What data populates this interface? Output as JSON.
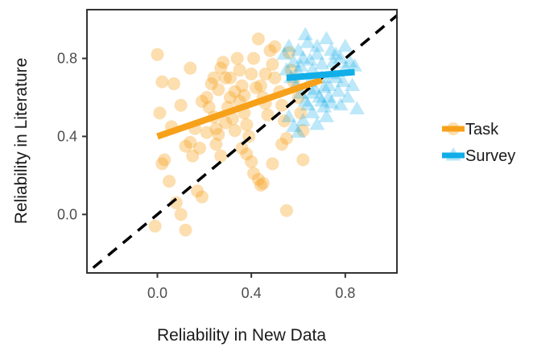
{
  "chart_data": {
    "type": "scatter",
    "xlabel": "Reliability in New Data",
    "ylabel": "Reliability in Literature",
    "xlim": [
      -0.3,
      1.02
    ],
    "ylim": [
      -0.3,
      1.05
    ],
    "xticks": [
      {
        "value": 0.0,
        "label": "0.0"
      },
      {
        "value": 0.4,
        "label": "0.4"
      },
      {
        "value": 0.8,
        "label": "0.8"
      }
    ],
    "yticks": [
      {
        "value": 0.0,
        "label": "0.0"
      },
      {
        "value": 0.4,
        "label": "0.4"
      },
      {
        "value": 0.8,
        "label": "0.8"
      }
    ],
    "legend_position": "right",
    "reference_line": {
      "type": "identity",
      "style": "dashed",
      "color": "#000000"
    },
    "series": [
      {
        "name": "Task",
        "marker": "circle",
        "color": "#f7a11a",
        "fit_line": [
          [
            0.0,
            0.4
          ],
          [
            0.7,
            0.69
          ]
        ],
        "points": [
          [
            0.0,
            0.82
          ],
          [
            0.02,
            0.68
          ],
          [
            0.07,
            0.67
          ],
          [
            0.01,
            0.52
          ],
          [
            0.06,
            0.45
          ],
          [
            0.03,
            0.28
          ],
          [
            0.05,
            0.17
          ],
          [
            0.02,
            0.26
          ],
          [
            -0.01,
            -0.06
          ],
          [
            0.1,
            0.0
          ],
          [
            0.12,
            -0.08
          ],
          [
            0.08,
            0.06
          ],
          [
            0.15,
            0.3
          ],
          [
            0.17,
            0.12
          ],
          [
            0.19,
            0.09
          ],
          [
            0.12,
            0.35
          ],
          [
            0.14,
            0.37
          ],
          [
            0.16,
            0.44
          ],
          [
            0.1,
            0.56
          ],
          [
            0.14,
            0.75
          ],
          [
            0.19,
            0.58
          ],
          [
            0.21,
            0.6
          ],
          [
            0.22,
            0.55
          ],
          [
            0.24,
            0.5
          ],
          [
            0.25,
            0.44
          ],
          [
            0.26,
            0.41
          ],
          [
            0.25,
            0.36
          ],
          [
            0.27,
            0.3
          ],
          [
            0.23,
            0.67
          ],
          [
            0.24,
            0.7
          ],
          [
            0.26,
            0.64
          ],
          [
            0.27,
            0.75
          ],
          [
            0.28,
            0.78
          ],
          [
            0.29,
            0.7
          ],
          [
            0.3,
            0.55
          ],
          [
            0.31,
            0.6
          ],
          [
            0.32,
            0.49
          ],
          [
            0.33,
            0.43
          ],
          [
            0.34,
            0.8
          ],
          [
            0.35,
            0.74
          ],
          [
            0.36,
            0.66
          ],
          [
            0.37,
            0.61
          ],
          [
            0.37,
            0.52
          ],
          [
            0.38,
            0.46
          ],
          [
            0.39,
            0.4
          ],
          [
            0.36,
            0.34
          ],
          [
            0.38,
            0.31
          ],
          [
            0.4,
            0.27
          ],
          [
            0.41,
            0.21
          ],
          [
            0.43,
            0.18
          ],
          [
            0.44,
            0.15
          ],
          [
            0.45,
            0.16
          ],
          [
            0.4,
            0.72
          ],
          [
            0.41,
            0.8
          ],
          [
            0.43,
            0.9
          ],
          [
            0.44,
            0.66
          ],
          [
            0.45,
            0.6
          ],
          [
            0.46,
            0.57
          ],
          [
            0.47,
            0.51
          ],
          [
            0.48,
            0.84
          ],
          [
            0.49,
            0.77
          ],
          [
            0.5,
            0.7
          ],
          [
            0.5,
            0.86
          ],
          [
            0.52,
            0.63
          ],
          [
            0.53,
            0.56
          ],
          [
            0.54,
            0.48
          ],
          [
            0.55,
            0.39
          ],
          [
            0.56,
            0.83
          ],
          [
            0.57,
            0.74
          ],
          [
            0.58,
            0.68
          ],
          [
            0.6,
            0.6
          ],
          [
            0.61,
            0.52
          ],
          [
            0.62,
            0.43
          ],
          [
            0.62,
            0.28
          ],
          [
            0.55,
            0.02
          ],
          [
            0.53,
            0.36
          ],
          [
            0.49,
            0.26
          ],
          [
            0.35,
            0.58
          ],
          [
            0.29,
            0.47
          ],
          [
            0.21,
            0.42
          ],
          [
            0.18,
            0.34
          ],
          [
            0.31,
            0.7
          ],
          [
            0.46,
            0.72
          ],
          [
            0.42,
            0.65
          ],
          [
            0.33,
            0.63
          ]
        ]
      },
      {
        "name": "Survey",
        "marker": "triangle",
        "color": "#11aee8",
        "fit_line": [
          [
            0.55,
            0.7
          ],
          [
            0.84,
            0.73
          ]
        ],
        "points": [
          [
            0.54,
            0.82
          ],
          [
            0.56,
            0.86
          ],
          [
            0.58,
            0.78
          ],
          [
            0.6,
            0.84
          ],
          [
            0.62,
            0.8
          ],
          [
            0.64,
            0.88
          ],
          [
            0.66,
            0.74
          ],
          [
            0.68,
            0.82
          ],
          [
            0.7,
            0.77
          ],
          [
            0.72,
            0.9
          ],
          [
            0.74,
            0.84
          ],
          [
            0.76,
            0.7
          ],
          [
            0.78,
            0.8
          ],
          [
            0.8,
            0.75
          ],
          [
            0.82,
            0.78
          ],
          [
            0.57,
            0.7
          ],
          [
            0.59,
            0.66
          ],
          [
            0.61,
            0.62
          ],
          [
            0.63,
            0.58
          ],
          [
            0.65,
            0.68
          ],
          [
            0.67,
            0.64
          ],
          [
            0.69,
            0.6
          ],
          [
            0.71,
            0.55
          ],
          [
            0.73,
            0.66
          ],
          [
            0.75,
            0.72
          ],
          [
            0.77,
            0.63
          ],
          [
            0.79,
            0.68
          ],
          [
            0.81,
            0.6
          ],
          [
            0.83,
            0.66
          ],
          [
            0.85,
            0.54
          ],
          [
            0.56,
            0.5
          ],
          [
            0.58,
            0.45
          ],
          [
            0.6,
            0.42
          ],
          [
            0.62,
            0.48
          ],
          [
            0.64,
            0.56
          ],
          [
            0.66,
            0.52
          ],
          [
            0.68,
            0.46
          ],
          [
            0.7,
            0.58
          ],
          [
            0.72,
            0.5
          ],
          [
            0.74,
            0.57
          ],
          [
            0.55,
            0.74
          ],
          [
            0.6,
            0.73
          ],
          [
            0.65,
            0.79
          ],
          [
            0.7,
            0.7
          ],
          [
            0.75,
            0.78
          ],
          [
            0.8,
            0.86
          ],
          [
            0.84,
            0.76
          ],
          [
            0.63,
            0.92
          ],
          [
            0.68,
            0.86
          ],
          [
            0.73,
            0.6
          ],
          [
            0.78,
            0.56
          ],
          [
            0.61,
            0.76
          ],
          [
            0.66,
            0.62
          ],
          [
            0.71,
            0.65
          ],
          [
            0.76,
            0.82
          ]
        ]
      }
    ]
  }
}
